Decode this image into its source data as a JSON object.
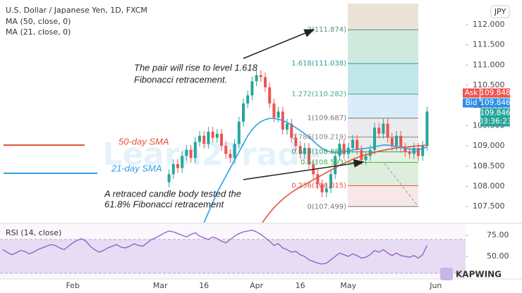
{
  "chart_data": [
    {
      "type": "candlestick",
      "title": "U.S. Dollar / Japanese Yen, 1D, FXCM",
      "currency": "JPY",
      "up_color": "#26a69a",
      "down_color": "#ef5350",
      "categories": [
        null,
        null,
        null,
        null,
        null,
        null,
        null,
        null,
        null,
        null,
        null,
        null,
        null,
        null,
        null,
        null,
        "Feb",
        null,
        null,
        null,
        null,
        null,
        null,
        null,
        null,
        null,
        null,
        null,
        null,
        null,
        null,
        null,
        null,
        null,
        null,
        null,
        "Mar",
        null,
        null,
        null,
        null,
        null,
        null,
        null,
        null,
        null,
        "16",
        null,
        null,
        null,
        null,
        null,
        null,
        null,
        null,
        null,
        null,
        null,
        "Apr",
        null,
        null,
        null,
        null,
        null,
        null,
        null,
        null,
        null,
        "16",
        null,
        null,
        null,
        null,
        null,
        null,
        null,
        null,
        null,
        null,
        "May",
        null,
        null,
        null,
        null,
        null,
        null,
        null,
        null,
        null,
        null,
        null,
        null,
        null,
        null,
        null,
        null,
        null,
        null,
        null,
        "Jun"
      ],
      "open": [
        null,
        null,
        null,
        null,
        null,
        null,
        null,
        null,
        null,
        null,
        null,
        null,
        null,
        null,
        null,
        null,
        null,
        null,
        null,
        null,
        null,
        null,
        null,
        null,
        null,
        null,
        null,
        null,
        null,
        null,
        null,
        null,
        null,
        null,
        null,
        null,
        null,
        null,
        108.1,
        108.3,
        108.55,
        108.45,
        108.75,
        108.9,
        108.7,
        109.1,
        109.25,
        109.05,
        109.35,
        109.2,
        109.3,
        109.0,
        108.8,
        108.7,
        109.05,
        109.6,
        110.05,
        110.25,
        110.6,
        110.75,
        110.7,
        110.45,
        110.05,
        109.7,
        109.85,
        109.4,
        109.55,
        109.2,
        109.0,
        108.8,
        108.95,
        108.55,
        108.3,
        108.05,
        107.85,
        107.95,
        108.3,
        108.75,
        109.05,
        108.8,
        108.95,
        109.15,
        108.9,
        108.65,
        108.75,
        108.9,
        109.45,
        109.3,
        109.55,
        109.2,
        109.0,
        109.25,
        108.95,
        108.85,
        108.8,
        108.95,
        108.75,
        109.0,
        null,
        null
      ],
      "high": [
        null,
        null,
        null,
        null,
        null,
        null,
        null,
        null,
        null,
        null,
        null,
        null,
        null,
        null,
        null,
        null,
        null,
        null,
        null,
        null,
        null,
        null,
        null,
        null,
        null,
        null,
        null,
        null,
        null,
        null,
        null,
        null,
        null,
        null,
        null,
        null,
        null,
        null,
        108.42,
        108.67,
        108.67,
        108.87,
        109.02,
        109.02,
        109.22,
        109.37,
        109.37,
        109.47,
        109.47,
        109.42,
        109.42,
        109.12,
        108.92,
        109.17,
        109.72,
        110.17,
        110.37,
        110.72,
        110.87,
        110.87,
        110.82,
        110.57,
        110.17,
        109.97,
        109.97,
        109.67,
        109.67,
        109.32,
        109.12,
        109.07,
        109.07,
        108.67,
        108.42,
        108.17,
        108.07,
        108.42,
        108.87,
        109.17,
        109.17,
        109.07,
        109.27,
        109.27,
        109.02,
        108.87,
        109.02,
        109.57,
        109.57,
        109.67,
        109.67,
        109.32,
        109.37,
        109.37,
        109.07,
        108.97,
        109.07,
        109.07,
        109.12,
        109.97,
        null,
        null
      ],
      "low": [
        null,
        null,
        null,
        null,
        null,
        null,
        null,
        null,
        null,
        null,
        null,
        null,
        null,
        null,
        null,
        null,
        null,
        null,
        null,
        null,
        null,
        null,
        null,
        null,
        null,
        null,
        null,
        null,
        null,
        null,
        null,
        null,
        null,
        null,
        null,
        null,
        null,
        null,
        107.98,
        108.18,
        108.33,
        108.33,
        108.63,
        108.58,
        108.58,
        108.98,
        108.93,
        108.93,
        109.08,
        109.08,
        108.88,
        108.68,
        108.58,
        108.58,
        108.93,
        109.48,
        109.93,
        110.13,
        110.48,
        110.58,
        110.33,
        109.93,
        109.58,
        109.58,
        109.28,
        109.28,
        109.08,
        108.88,
        108.68,
        108.68,
        108.43,
        108.18,
        107.93,
        107.73,
        107.73,
        107.83,
        108.18,
        108.63,
        108.68,
        108.68,
        108.83,
        108.78,
        108.53,
        108.53,
        108.63,
        108.78,
        109.18,
        109.18,
        109.08,
        108.88,
        108.88,
        108.83,
        108.73,
        108.68,
        108.68,
        108.63,
        108.63,
        108.88,
        null,
        null
      ],
      "close": [
        null,
        null,
        null,
        null,
        null,
        null,
        null,
        null,
        null,
        null,
        null,
        null,
        null,
        null,
        null,
        null,
        null,
        null,
        null,
        null,
        null,
        null,
        null,
        null,
        null,
        null,
        null,
        null,
        null,
        null,
        null,
        null,
        null,
        null,
        null,
        null,
        null,
        null,
        108.3,
        108.55,
        108.45,
        108.75,
        108.9,
        108.7,
        109.1,
        109.25,
        109.05,
        109.35,
        109.2,
        109.3,
        109.0,
        108.8,
        108.7,
        109.05,
        109.6,
        110.05,
        110.25,
        110.6,
        110.75,
        110.7,
        110.45,
        110.05,
        109.7,
        109.85,
        109.4,
        109.55,
        109.2,
        109.0,
        108.8,
        108.95,
        108.55,
        108.3,
        108.05,
        107.85,
        107.95,
        108.3,
        108.75,
        109.05,
        108.8,
        108.95,
        109.15,
        108.9,
        108.65,
        108.75,
        108.9,
        109.45,
        109.3,
        109.55,
        109.2,
        109.0,
        109.25,
        108.95,
        108.85,
        108.8,
        108.95,
        108.75,
        109.0,
        109.85,
        null,
        null
      ],
      "lines": [
        {
          "name": "MA (50, close, 0)",
          "color": "#e5533d",
          "values": [
            null,
            null,
            null,
            null,
            null,
            null,
            null,
            null,
            null,
            null,
            null,
            null,
            null,
            null,
            null,
            null,
            null,
            null,
            null,
            null,
            null,
            null,
            null,
            null,
            null,
            null,
            null,
            null,
            null,
            null,
            null,
            null,
            null,
            null,
            null,
            null,
            null,
            null,
            null,
            null,
            null,
            null,
            null,
            null,
            null,
            null,
            null,
            null,
            null,
            null,
            null,
            null,
            null,
            null,
            null,
            null,
            null,
            null,
            null,
            107.05,
            107.2,
            107.34,
            107.47,
            107.58,
            107.68,
            107.77,
            107.85,
            107.92,
            107.98,
            108.04,
            108.1,
            108.16,
            108.22,
            108.28,
            108.34,
            108.4,
            108.46,
            108.52,
            108.57,
            108.62,
            108.67,
            108.71,
            108.75,
            108.78,
            108.81,
            108.84,
            108.87,
            108.89,
            108.91,
            108.93,
            108.95,
            108.96,
            108.97,
            108.98,
            108.99,
            109.0,
            109.01,
            109.02,
            null,
            null
          ]
        },
        {
          "name": "MA (21, close, 0)",
          "color": "#2d9fe6",
          "values": [
            null,
            null,
            null,
            null,
            null,
            null,
            null,
            null,
            null,
            null,
            null,
            null,
            null,
            null,
            null,
            null,
            null,
            null,
            null,
            null,
            null,
            null,
            null,
            null,
            null,
            null,
            null,
            null,
            null,
            null,
            null,
            null,
            null,
            null,
            null,
            null,
            null,
            null,
            null,
            null,
            null,
            null,
            null,
            null,
            null,
            null,
            107.1,
            107.35,
            107.6,
            107.85,
            108.05,
            108.25,
            108.45,
            108.65,
            108.85,
            109.05,
            109.25,
            109.4,
            109.52,
            109.6,
            109.65,
            109.68,
            109.68,
            109.66,
            109.63,
            109.58,
            109.52,
            109.45,
            109.38,
            109.3,
            109.22,
            109.12,
            109.02,
            108.94,
            108.88,
            108.85,
            108.84,
            108.85,
            108.86,
            108.88,
            108.9,
            108.92,
            108.93,
            108.94,
            108.95,
            108.98,
            109.0,
            109.02,
            109.02,
            109.0,
            108.98,
            108.96,
            108.94,
            108.92,
            108.91,
            108.91,
            108.93,
            108.98,
            null,
            null
          ]
        }
      ],
      "ylim": [
        107.12,
        112.61
      ],
      "yticks": [
        {
          "value": 107.5,
          "label": "107.500"
        },
        {
          "value": 108,
          "label": "108.000"
        },
        {
          "value": 108.5,
          "label": "108.500"
        },
        {
          "value": 109,
          "label": "109.000"
        },
        {
          "value": 109.5,
          "label": "109.500"
        },
        {
          "value": 110,
          "label": "110.000"
        },
        {
          "value": 110.5,
          "label": "110.500"
        },
        {
          "value": 111,
          "label": "111.000"
        },
        {
          "value": 111.5,
          "label": "111.500"
        },
        {
          "value": 112,
          "label": "112.000"
        }
      ],
      "grid": false,
      "fibonacci": [
        {
          "value": 111.874,
          "label": "2(111.874)",
          "color": "#5a8f80",
          "fill": "#e6d9c9"
        },
        {
          "value": 111.038,
          "label": "1.618(111.038)",
          "color": "#2a9d9a",
          "fill": "#bfe1d3"
        },
        {
          "value": 110.282,
          "label": "1.272(110.282)",
          "color": "#3fae7a",
          "fill": "#acdde3"
        },
        {
          "value": 109.687,
          "label": "1(109.687)",
          "color": "#777777",
          "fill": "#cde6f7"
        },
        {
          "value": 109.219,
          "label": "0.786(109.219)",
          "color": "#888888",
          "fill": "#e4e4e8"
        },
        {
          "value": 108.851,
          "label": "0.618(108.851)",
          "color": "#3a9a5a",
          "fill": "#e3e7e3"
        },
        {
          "value": 108.593,
          "label": "0.5(108.593)",
          "color": "#4caf50",
          "fill": "#d9eed9"
        },
        {
          "value": 108.015,
          "label": "0.236(108.015)",
          "color": "#e05050",
          "fill": "#d2ead0"
        },
        {
          "value": 107.499,
          "label": "0(107.499)",
          "color": "#777777",
          "fill": "#f4dfdf"
        }
      ],
      "annotations": [
        {
          "text": "The pair will rise to level 1.618",
          "color": "#222222"
        },
        {
          "text": "Fibonacci retracement.",
          "color": "#222222"
        },
        {
          "text": "A retraced candle body tested the",
          "color": "#222222"
        },
        {
          "text": "61.8% Fibonacci retracement",
          "color": "#222222"
        },
        {
          "text": "50-day SMA",
          "color": "#e5533d"
        },
        {
          "text": "21-day SMA",
          "color": "#2d9fe6"
        }
      ],
      "quote": {
        "ask_label": "Ask",
        "ask": 109.848,
        "bid_label": "Bid",
        "bid": 109.846,
        "last": 109.846,
        "countdown": "03:36:23"
      },
      "watermark": "Learn2Trade",
      "logo": "KAPWING"
    },
    {
      "type": "line",
      "title": "RSI (14, close)",
      "color": "#8e5cc4",
      "band": [
        30,
        70
      ],
      "band_color": "#e6dcf3",
      "values": [
        58,
        55,
        52,
        54,
        57,
        56,
        53,
        55,
        58,
        60,
        62,
        64,
        63,
        60,
        58,
        62,
        66,
        69,
        71,
        68,
        62,
        58,
        55,
        57,
        60,
        62,
        64,
        61,
        60,
        62,
        65,
        63,
        62,
        66,
        70,
        72,
        75,
        78,
        80,
        79,
        77,
        75,
        73,
        76,
        78,
        74,
        72,
        70,
        73,
        71,
        68,
        66,
        70,
        74,
        77,
        79,
        80,
        81,
        79,
        76,
        72,
        68,
        63,
        65,
        60,
        58,
        55,
        56,
        52,
        50,
        46,
        44,
        42,
        41,
        42,
        46,
        50,
        54,
        52,
        50,
        53,
        51,
        48,
        49,
        52,
        57,
        55,
        58,
        54,
        51,
        54,
        51,
        50,
        49,
        51,
        48,
        52,
        63,
        null,
        null
      ],
      "ylim": [
        24.2,
        86.7
      ],
      "yticks": [
        {
          "value": 75,
          "label": "75.00"
        },
        {
          "value": 50,
          "label": "50.00"
        }
      ]
    }
  ]
}
